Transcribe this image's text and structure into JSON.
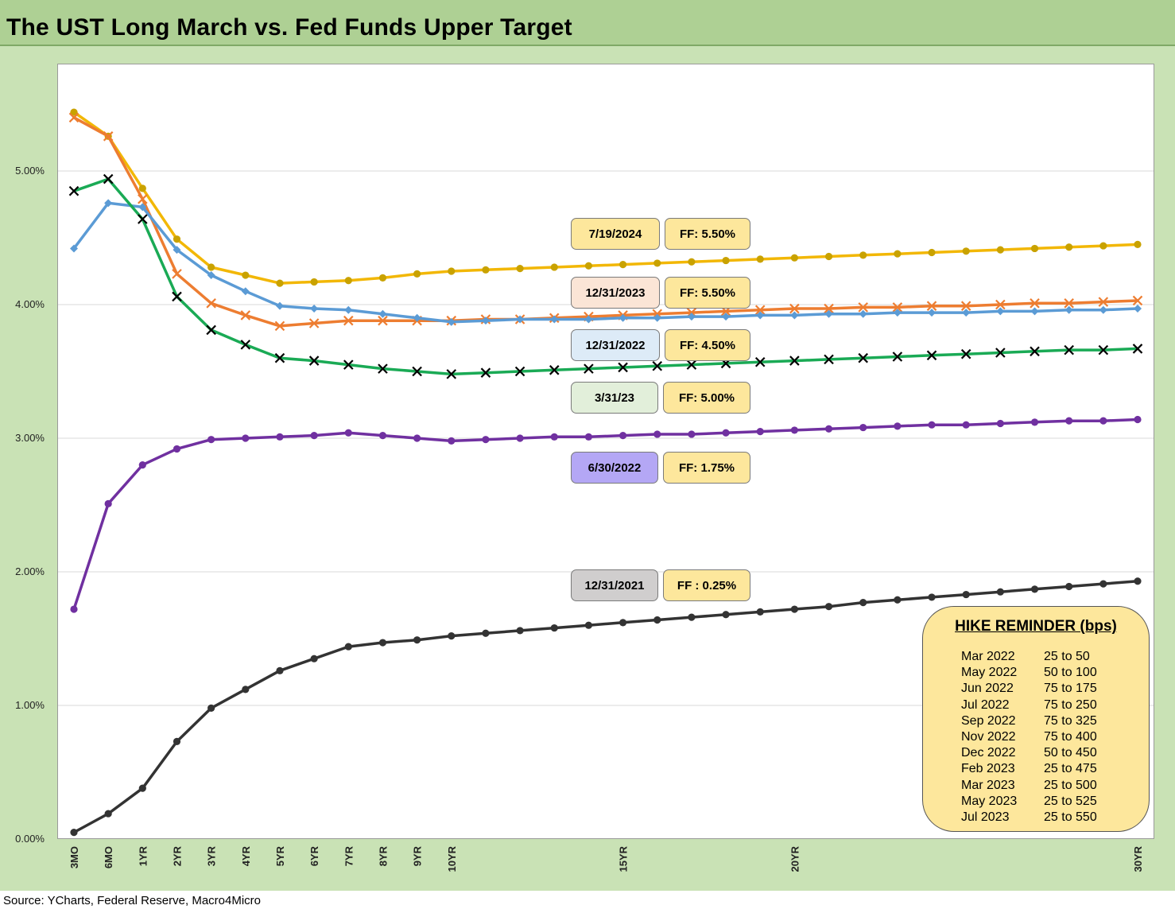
{
  "title": "The UST Long March vs. Fed Funds Upper Target",
  "source": "Source: YCharts, Federal Reserve, Macro4Micro",
  "chart_data": {
    "type": "line",
    "title": "The UST Long March vs. Fed Funds Upper Target",
    "y_ticks": [
      "0.00%",
      "1.00%",
      "2.00%",
      "3.00%",
      "4.00%",
      "5.00%"
    ],
    "ylim": [
      0,
      5.8
    ],
    "x_index": [
      0,
      1,
      2,
      3,
      4,
      5,
      6,
      7,
      8,
      9,
      10,
      11,
      12,
      13,
      14,
      15,
      16,
      17,
      18,
      19,
      20,
      21,
      22,
      23,
      24,
      25,
      26,
      27,
      28,
      29,
      30,
      31
    ],
    "x_tick_labels": [
      {
        "i": 0,
        "label": "3MO"
      },
      {
        "i": 1,
        "label": "6MO"
      },
      {
        "i": 2,
        "label": "1YR"
      },
      {
        "i": 3,
        "label": "2YR"
      },
      {
        "i": 4,
        "label": "3YR"
      },
      {
        "i": 5,
        "label": "4YR"
      },
      {
        "i": 6,
        "label": "5YR"
      },
      {
        "i": 7,
        "label": "6YR"
      },
      {
        "i": 8,
        "label": "7YR"
      },
      {
        "i": 9,
        "label": "8YR"
      },
      {
        "i": 10,
        "label": "9YR"
      },
      {
        "i": 11,
        "label": "10YR"
      },
      {
        "i": 16,
        "label": "15YR"
      },
      {
        "i": 21,
        "label": "20YR"
      },
      {
        "i": 31,
        "label": "30YR"
      }
    ],
    "grid": true,
    "series": [
      {
        "name": "7/19/2024",
        "color": "#f2b705",
        "marker": "circle",
        "marker_color": "#c9a200",
        "values": [
          5.44,
          5.26,
          4.87,
          4.49,
          4.28,
          4.22,
          4.16,
          4.17,
          4.18,
          4.2,
          4.23,
          4.25,
          4.26,
          4.27,
          4.28,
          4.29,
          4.3,
          4.31,
          4.32,
          4.33,
          4.34,
          4.35,
          4.36,
          4.37,
          4.38,
          4.39,
          4.4,
          4.41,
          4.42,
          4.43,
          4.44,
          4.45
        ]
      },
      {
        "name": "12/31/2023",
        "color": "#ed7d31",
        "marker": "x",
        "marker_color": "#ed7d31",
        "values": [
          5.4,
          5.26,
          4.79,
          4.23,
          4.01,
          3.92,
          3.84,
          3.86,
          3.88,
          3.88,
          3.88,
          3.88,
          3.89,
          3.89,
          3.9,
          3.91,
          3.92,
          3.93,
          3.94,
          3.95,
          3.96,
          3.97,
          3.97,
          3.98,
          3.98,
          3.99,
          3.99,
          4.0,
          4.01,
          4.01,
          4.02,
          4.03
        ]
      },
      {
        "name": "12/31/2022",
        "color": "#5b9bd5",
        "marker": "diamond",
        "marker_color": "#5b9bd5",
        "values": [
          4.42,
          4.76,
          4.73,
          4.41,
          4.22,
          4.1,
          3.99,
          3.97,
          3.96,
          3.93,
          3.9,
          3.87,
          3.88,
          3.89,
          3.89,
          3.89,
          3.9,
          3.9,
          3.91,
          3.91,
          3.92,
          3.92,
          3.93,
          3.93,
          3.94,
          3.94,
          3.94,
          3.95,
          3.95,
          3.96,
          3.96,
          3.97
        ]
      },
      {
        "name": "3/31/23",
        "color": "#1aaa55",
        "marker": "x",
        "marker_color": "#000000",
        "values": [
          4.85,
          4.94,
          4.64,
          4.06,
          3.81,
          3.7,
          3.6,
          3.58,
          3.55,
          3.52,
          3.5,
          3.48,
          3.49,
          3.5,
          3.51,
          3.52,
          3.53,
          3.54,
          3.55,
          3.56,
          3.57,
          3.58,
          3.59,
          3.6,
          3.61,
          3.62,
          3.63,
          3.64,
          3.65,
          3.66,
          3.66,
          3.67
        ]
      },
      {
        "name": "6/30/2022",
        "color": "#7030a0",
        "marker": "circle",
        "marker_color": "#7030a0",
        "values": [
          1.72,
          2.51,
          2.8,
          2.92,
          2.99,
          3.0,
          3.01,
          3.02,
          3.04,
          3.02,
          3.0,
          2.98,
          2.99,
          3.0,
          3.01,
          3.01,
          3.02,
          3.03,
          3.03,
          3.04,
          3.05,
          3.06,
          3.07,
          3.08,
          3.09,
          3.1,
          3.1,
          3.11,
          3.12,
          3.13,
          3.13,
          3.14
        ]
      },
      {
        "name": "12/31/2021",
        "color": "#333333",
        "marker": "circle",
        "marker_color": "#333333",
        "values": [
          0.05,
          0.19,
          0.38,
          0.73,
          0.98,
          1.12,
          1.26,
          1.35,
          1.44,
          1.47,
          1.49,
          1.52,
          1.54,
          1.56,
          1.58,
          1.6,
          1.62,
          1.64,
          1.66,
          1.68,
          1.7,
          1.72,
          1.74,
          1.77,
          1.79,
          1.81,
          1.83,
          1.85,
          1.87,
          1.89,
          1.91,
          1.93
        ]
      }
    ],
    "annotations": [
      {
        "date": "7/19/2024",
        "date_bg": "#fde79c",
        "ff": "FF: 5.50%"
      },
      {
        "date": "12/31/2023",
        "date_bg": "#fbe5d6",
        "ff": "FF: 5.50%"
      },
      {
        "date": "12/31/2022",
        "date_bg": "#ddebf7",
        "ff": "FF: 4.50%"
      },
      {
        "date": "3/31/23",
        "date_bg": "#e2efda",
        "ff": "FF: 5.00%"
      },
      {
        "date": "6/30/2022",
        "date_bg": "#b4a7f5",
        "ff": "FF: 1.75%"
      },
      {
        "date": "12/31/2021",
        "date_bg": "#d0cece",
        "ff": "FF : 0.25%"
      }
    ]
  },
  "hike_reminder": {
    "title": "HIKE REMINDER (bps)",
    "rows": [
      {
        "month": "Mar 2022",
        "hike": "25 to 50"
      },
      {
        "month": "May 2022",
        "hike": "50 to 100"
      },
      {
        "month": "Jun 2022",
        "hike": "75 to 175"
      },
      {
        "month": "Jul 2022",
        "hike": "75 to 250"
      },
      {
        "month": "Sep 2022",
        "hike": "75 to 325"
      },
      {
        "month": "Nov 2022",
        "hike": "75 to 400"
      },
      {
        "month": "Dec 2022",
        "hike": "50 to 450"
      },
      {
        "month": "Feb 2023",
        "hike": "25 to 475"
      },
      {
        "month": "Mar 2023",
        "hike": "25 to 500"
      },
      {
        "month": "May 2023",
        "hike": "25 to 525"
      },
      {
        "month": "Jul 2023",
        "hike": "25 to 550"
      }
    ]
  }
}
